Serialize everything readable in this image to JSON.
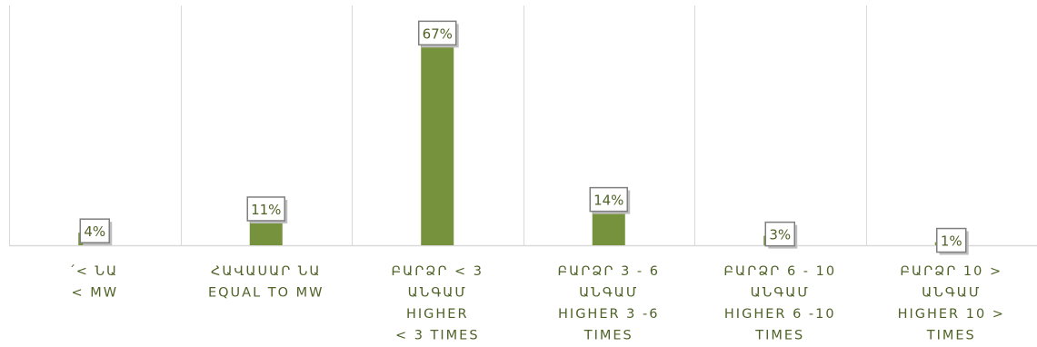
{
  "chart_data": {
    "type": "bar",
    "title": "",
    "xlabel": "",
    "ylabel": "",
    "ylim": [
      0,
      70
    ],
    "grid": true,
    "legend": "none",
    "bar_color": "#76923c",
    "label_color": "#4f6228",
    "categories": [
      [
        "՛< ՆԱ",
        "< MW"
      ],
      [
        "ՀԱՎԱՍԱՐ ՆԱ",
        "EQUAL TO MW"
      ],
      [
        "ԲԱՐՁՐ < 3",
        "ԱՆԳԱՄ",
        "HIGHER",
        "< 3 TIMES"
      ],
      [
        "ԲԱՐՁՐ 3 - 6",
        "ԱՆԳԱՄ",
        "HIGHER 3 -6",
        "TIMES"
      ],
      [
        "ԲԱՐՁՐ 6 - 10",
        "ԱՆԳԱՄ",
        "HIGHER 6 -10",
        "TIMES"
      ],
      [
        "ԲԱՐՁՐ 10 >",
        "ԱՆԳԱՄ",
        "HIGHER 10 >",
        "TIMES"
      ]
    ],
    "values": [
      4,
      11,
      67,
      14,
      3,
      1
    ],
    "data_labels": [
      "4%",
      "11%",
      "67%",
      "14%",
      "3%",
      "1%"
    ]
  }
}
